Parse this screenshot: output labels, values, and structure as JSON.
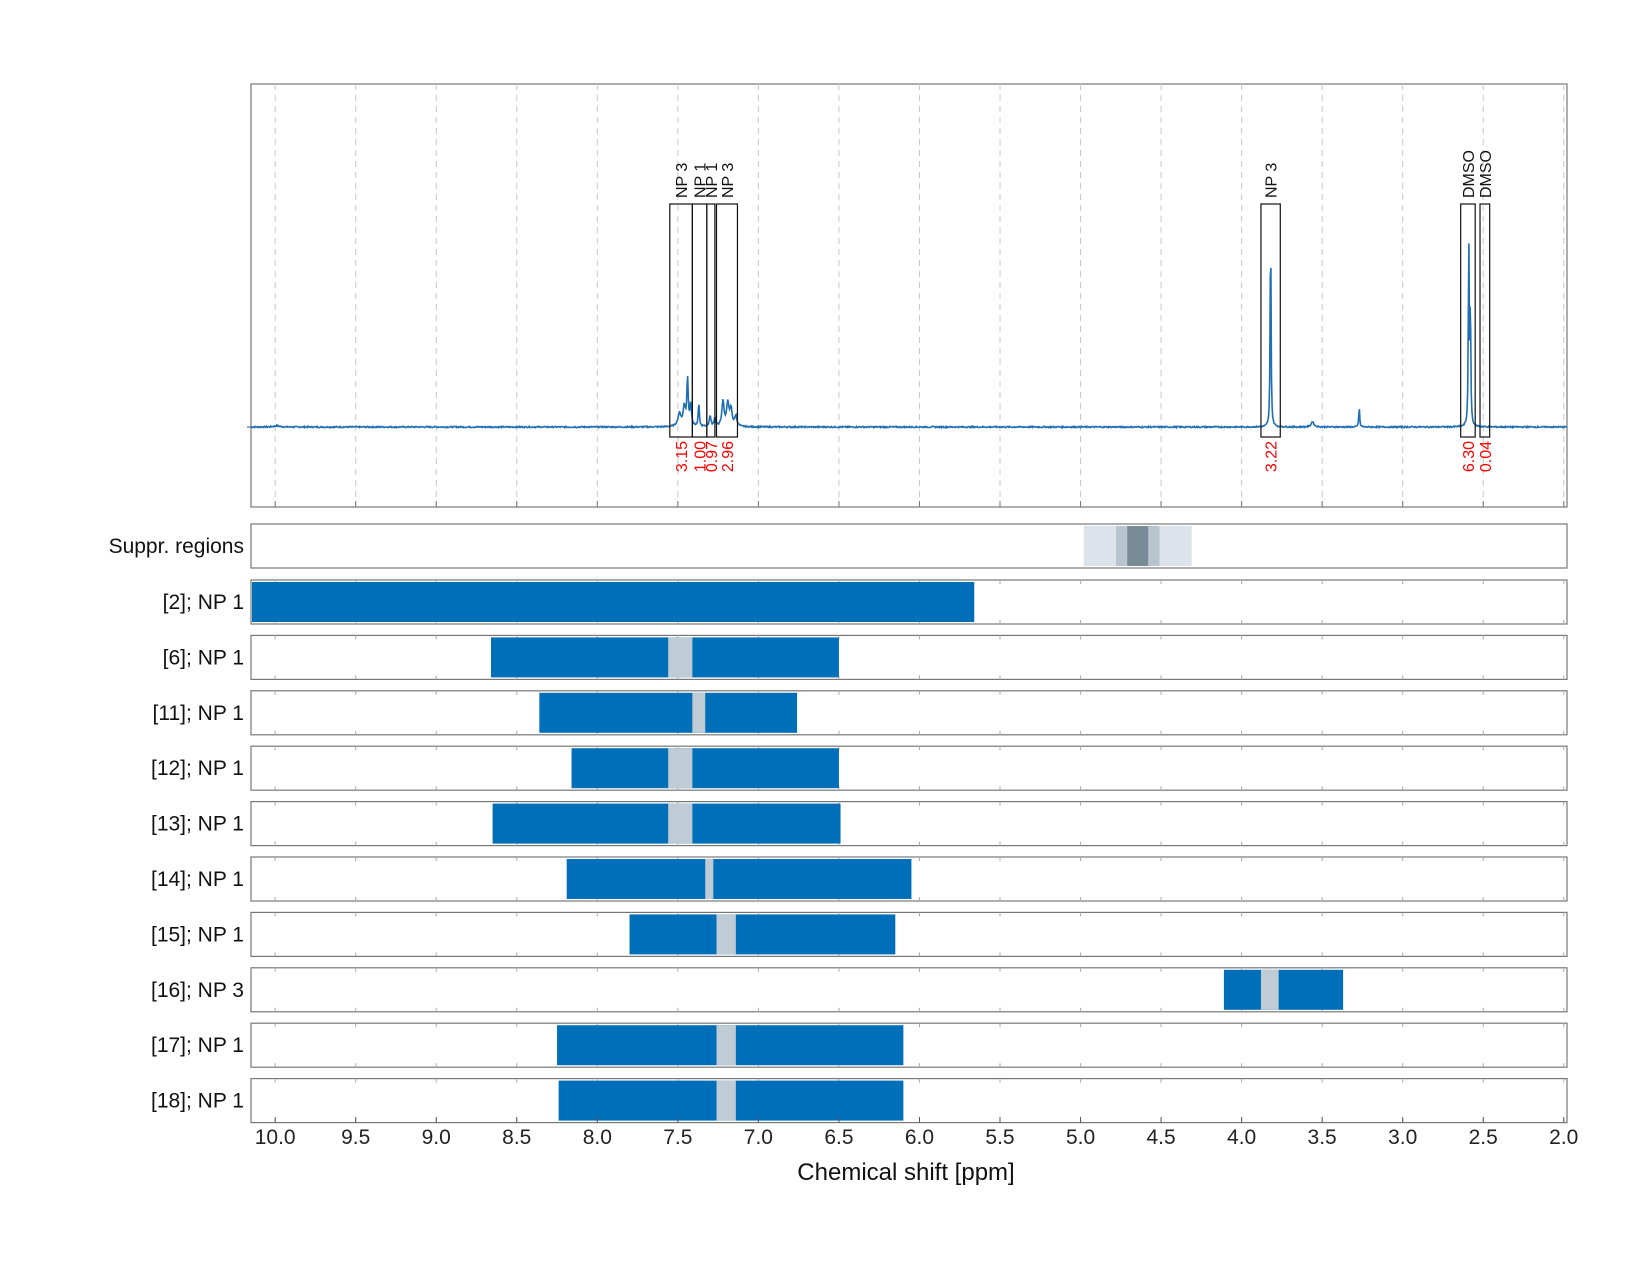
{
  "chart_data": {
    "type": "line",
    "xlabel": "Chemical shift [ppm]",
    "x_reversed": true,
    "xlim": [
      10.15,
      1.98
    ],
    "x_ticks": [
      "10.0",
      "9.5",
      "9.0",
      "8.5",
      "8.0",
      "7.5",
      "7.0",
      "6.5",
      "6.0",
      "5.5",
      "5.0",
      "4.5",
      "4.0",
      "3.5",
      "3.0",
      "2.5",
      "2.0"
    ],
    "colors": {
      "spectrum": "#1f6fb5",
      "interval": "#006fba",
      "gap": "#bfcbd5",
      "integral_text": "#ff0000",
      "suppression_outer": "#dde3ea",
      "suppression_mid": "#b8c4ce",
      "suppression_core": "#7a8b98"
    },
    "spectrum": {
      "baseline": 0,
      "peaks": [
        {
          "ppm": 9.99,
          "height": 0.006,
          "width": 0.02
        },
        {
          "ppm": 7.49,
          "height": 0.06,
          "width": 0.012
        },
        {
          "ppm": 7.46,
          "height": 0.09,
          "width": 0.008
        },
        {
          "ppm": 7.44,
          "height": 0.22,
          "width": 0.005
        },
        {
          "ppm": 7.42,
          "height": 0.1,
          "width": 0.006
        },
        {
          "ppm": 7.37,
          "height": 0.11,
          "width": 0.004
        },
        {
          "ppm": 7.3,
          "height": 0.05,
          "width": 0.006
        },
        {
          "ppm": 7.27,
          "height": 0.04,
          "width": 0.006
        },
        {
          "ppm": 7.22,
          "height": 0.12,
          "width": 0.008
        },
        {
          "ppm": 7.19,
          "height": 0.11,
          "width": 0.008
        },
        {
          "ppm": 7.17,
          "height": 0.08,
          "width": 0.008
        },
        {
          "ppm": 7.14,
          "height": 0.05,
          "width": 0.008
        },
        {
          "ppm": 3.82,
          "height": 1.0,
          "width": 0.003
        },
        {
          "ppm": 3.56,
          "height": 0.025,
          "width": 0.01
        },
        {
          "ppm": 3.27,
          "height": 0.1,
          "width": 0.003
        },
        {
          "ppm": 2.59,
          "height": 0.88,
          "width": 0.003
        },
        {
          "ppm": 2.58,
          "height": 0.6,
          "width": 0.003
        }
      ]
    },
    "assignment_boxes": [
      {
        "label": "NP 3",
        "from": 7.55,
        "to": 7.41,
        "integral": "3.15"
      },
      {
        "label": "NP 1",
        "from": 7.41,
        "to": 7.32,
        "integral": "1.00"
      },
      {
        "label": "NP 1",
        "from": 7.32,
        "to": 7.27,
        "integral": "0.97"
      },
      {
        "label": "NP 3",
        "from": 7.26,
        "to": 7.13,
        "integral": "2.96"
      },
      {
        "label": "NP 3",
        "from": 3.88,
        "to": 3.76,
        "integral": "3.22"
      },
      {
        "label": "DMSO",
        "from": 2.64,
        "to": 2.55,
        "integral": "6.30"
      },
      {
        "label": "DMSO",
        "from": 2.52,
        "to": 2.46,
        "integral": "0.04"
      }
    ],
    "suppression": {
      "label": "Suppr. regions",
      "outer": [
        4.98,
        4.31
      ],
      "mid": [
        4.78,
        4.51
      ],
      "core": [
        4.71,
        4.58
      ]
    },
    "rows": [
      {
        "label": "[2]; NP 1",
        "from": 10.15,
        "to": 5.66,
        "gap": null
      },
      {
        "label": "[6]; NP 1",
        "from": 8.66,
        "to": 6.5,
        "gap": [
          7.56,
          7.41
        ]
      },
      {
        "label": "[11]; NP 1",
        "from": 8.36,
        "to": 6.76,
        "gap": [
          7.41,
          7.33
        ]
      },
      {
        "label": "[12]; NP 1",
        "from": 8.16,
        "to": 6.5,
        "gap": [
          7.56,
          7.41
        ]
      },
      {
        "label": "[13]; NP 1",
        "from": 8.65,
        "to": 6.49,
        "gap": [
          7.56,
          7.41
        ]
      },
      {
        "label": "[14]; NP 1",
        "from": 8.19,
        "to": 6.05,
        "gap": [
          7.33,
          7.28
        ]
      },
      {
        "label": "[15]; NP 1",
        "from": 7.8,
        "to": 6.15,
        "gap": [
          7.26,
          7.14
        ]
      },
      {
        "label": "[16]; NP 3",
        "from": 4.11,
        "to": 3.37,
        "gap": [
          3.88,
          3.77
        ]
      },
      {
        "label": "[17]; NP 1",
        "from": 8.25,
        "to": 6.1,
        "gap": [
          7.26,
          7.14
        ]
      },
      {
        "label": "[18]; NP 1",
        "from": 8.24,
        "to": 6.1,
        "gap": [
          7.26,
          7.14
        ]
      }
    ]
  }
}
